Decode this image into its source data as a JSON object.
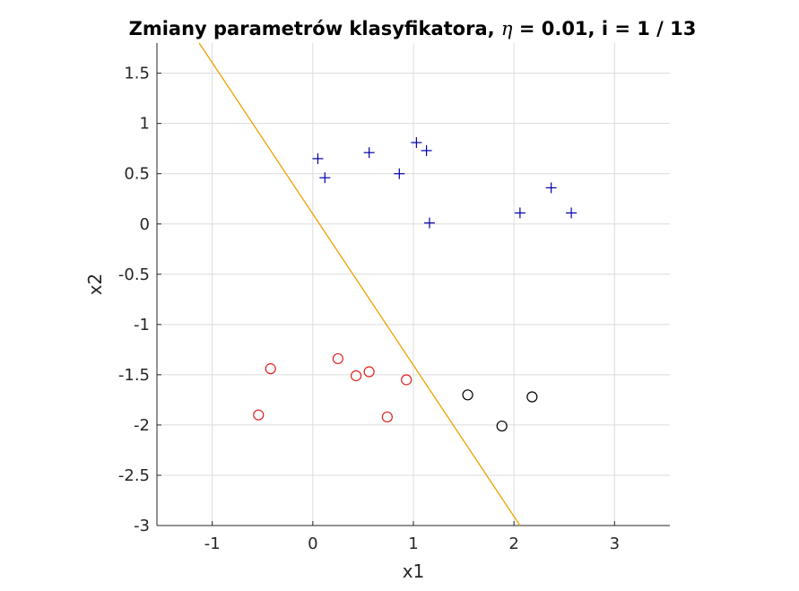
{
  "chart_data": {
    "type": "scatter",
    "title": "Zmiany parametrów klasyfikatora, η = 0.01, i = 1 / 13",
    "title_parts": [
      "Zmiany parametrów klasyfikatora, ",
      "η",
      " = 0.01, i = 1 / 13"
    ],
    "xlabel": "x1",
    "ylabel": "x2",
    "xlim": [
      -1.55,
      3.55
    ],
    "ylim": [
      -3,
      1.8
    ],
    "xticks": [
      -1,
      0,
      1,
      2,
      3
    ],
    "xtick_labels": [
      "-1",
      "0",
      "1",
      "2",
      "3"
    ],
    "yticks": [
      1.5,
      1,
      0.5,
      0,
      -0.5,
      -1,
      -1.5,
      -2,
      -2.5,
      -3
    ],
    "ytick_labels": [
      "1.5",
      "1",
      "0.5",
      "0",
      "-0.5",
      "-1",
      "-1.5",
      "-2",
      "-2.5",
      "-3"
    ],
    "grid": true,
    "series": [
      {
        "marker": "plus",
        "color": "#0000aa",
        "points": [
          [
            0.05,
            0.65
          ],
          [
            0.12,
            0.46
          ],
          [
            0.56,
            0.71
          ],
          [
            0.86,
            0.5
          ],
          [
            1.03,
            0.81
          ],
          [
            1.13,
            0.73
          ],
          [
            1.16,
            0.01
          ],
          [
            2.06,
            0.11
          ],
          [
            2.37,
            0.36
          ],
          [
            2.57,
            0.11
          ]
        ]
      },
      {
        "marker": "circle",
        "color": "#e02020",
        "points": [
          [
            -0.54,
            -1.9
          ],
          [
            -0.42,
            -1.44
          ],
          [
            0.25,
            -1.34
          ],
          [
            0.43,
            -1.51
          ],
          [
            0.56,
            -1.47
          ],
          [
            0.74,
            -1.92
          ],
          [
            0.93,
            -1.55
          ]
        ]
      },
      {
        "marker": "circle",
        "color": "#000000",
        "points": [
          [
            1.54,
            -1.7
          ],
          [
            1.88,
            -2.01
          ],
          [
            2.18,
            -1.72
          ]
        ]
      }
    ],
    "lines": [
      {
        "color": "#f0a000",
        "points": [
          [
            -1.13,
            1.8
          ],
          [
            2.06,
            -3.0
          ]
        ]
      }
    ]
  }
}
